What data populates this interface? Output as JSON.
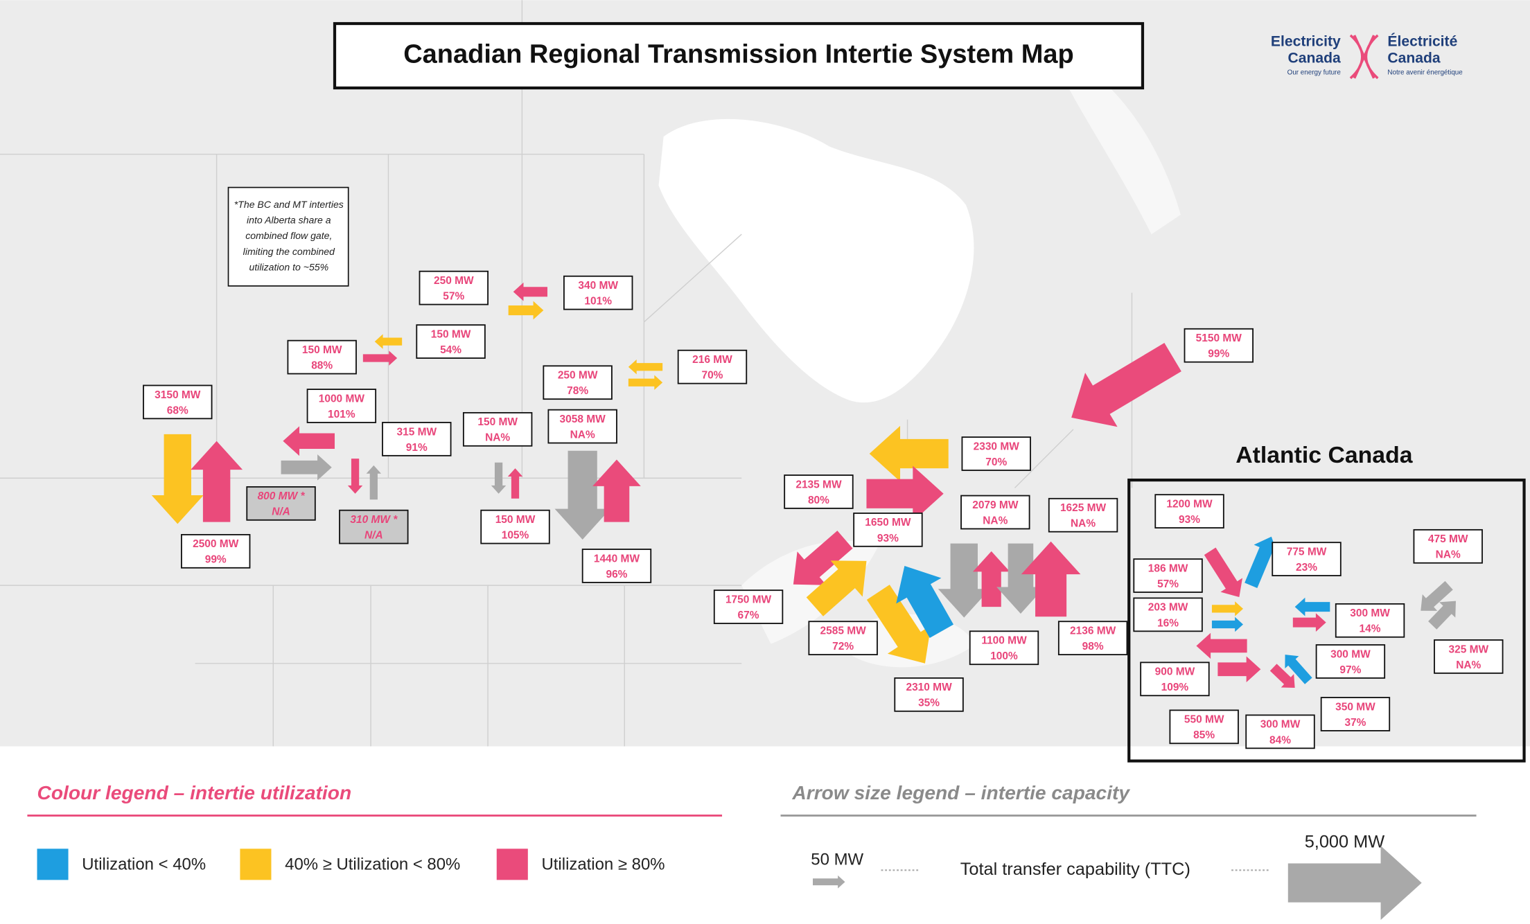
{
  "header": {
    "title": "Canadian Regional Transmission Intertie System Map",
    "logo": {
      "en_name": [
        "Electricity",
        "Canada"
      ],
      "en_tagline": "Our energy future",
      "fr_name": [
        "Électricité",
        "Canada"
      ],
      "fr_tagline": "Notre avenir énergétique"
    }
  },
  "note": [
    "*The BC and MT interties",
    "into Alberta share a",
    "combined flow gate,",
    "limiting the combined",
    "utilization to ~55%"
  ],
  "atlantic_title": "Atlantic Canada",
  "labels": [
    {
      "capacity": "250 MW",
      "utilization": "57%"
    },
    {
      "capacity": "340 MW",
      "utilization": "101%"
    },
    {
      "capacity": "150 MW",
      "utilization": "54%"
    },
    {
      "capacity": "150 MW",
      "utilization": "88%"
    },
    {
      "capacity": "216 MW",
      "utilization": "70%"
    },
    {
      "capacity": "250 MW",
      "utilization": "78%"
    },
    {
      "capacity": "3150 MW",
      "utilization": "68%"
    },
    {
      "capacity": "1000 MW",
      "utilization": "101%"
    },
    {
      "capacity": "315 MW",
      "utilization": "91%"
    },
    {
      "capacity": "150 MW",
      "utilization": "NA%"
    },
    {
      "capacity": "3058 MW",
      "utilization": "NA%"
    },
    {
      "capacity": "800 MW *",
      "utilization": "N/A"
    },
    {
      "capacity": "310 MW *",
      "utilization": "N/A"
    },
    {
      "capacity": "150 MW",
      "utilization": "105%"
    },
    {
      "capacity": "2500 MW",
      "utilization": "99%"
    },
    {
      "capacity": "1440 MW",
      "utilization": "96%"
    },
    {
      "capacity": "5150 MW",
      "utilization": "99%"
    },
    {
      "capacity": "2330 MW",
      "utilization": "70%"
    },
    {
      "capacity": "2135 MW",
      "utilization": "80%"
    },
    {
      "capacity": "2079 MW",
      "utilization": "NA%"
    },
    {
      "capacity": "1625 MW",
      "utilization": "NA%"
    },
    {
      "capacity": "1650 MW",
      "utilization": "93%"
    },
    {
      "capacity": "1750 MW",
      "utilization": "67%"
    },
    {
      "capacity": "2585 MW",
      "utilization": "72%"
    },
    {
      "capacity": "1100 MW",
      "utilization": "100%"
    },
    {
      "capacity": "2136 MW",
      "utilization": "98%"
    },
    {
      "capacity": "2310 MW",
      "utilization": "35%"
    },
    {
      "capacity": "1200 MW",
      "utilization": "93%"
    },
    {
      "capacity": "775 MW",
      "utilization": "23%"
    },
    {
      "capacity": "186 MW",
      "utilization": "57%"
    },
    {
      "capacity": "203 MW",
      "utilization": "16%"
    },
    {
      "capacity": "475 MW",
      "utilization": "NA%"
    },
    {
      "capacity": "300 MW",
      "utilization": "14%"
    },
    {
      "capacity": "300 MW",
      "utilization": "97%"
    },
    {
      "capacity": "900 MW",
      "utilization": "109%"
    },
    {
      "capacity": "325 MW",
      "utilization": "NA%"
    },
    {
      "capacity": "350 MW",
      "utilization": "37%"
    },
    {
      "capacity": "550 MW",
      "utilization": "85%"
    },
    {
      "capacity": "300 MW",
      "utilization": "84%"
    }
  ],
  "colour_legend": {
    "title": "Colour legend – intertie utilization",
    "items": [
      {
        "label": "Utilization < 40%",
        "color": "#1e9ee0"
      },
      {
        "label": "40% ≥ Utilization < 80%",
        "color": "#fcc322"
      },
      {
        "label": "Utilization ≥ 80%",
        "color": "#ea4b7b"
      }
    ]
  },
  "size_legend": {
    "title": "Arrow size legend – intertie capacity",
    "small": "50 MW",
    "middle": "Total transfer capability (TTC)",
    "large": "5,000 MW"
  }
}
